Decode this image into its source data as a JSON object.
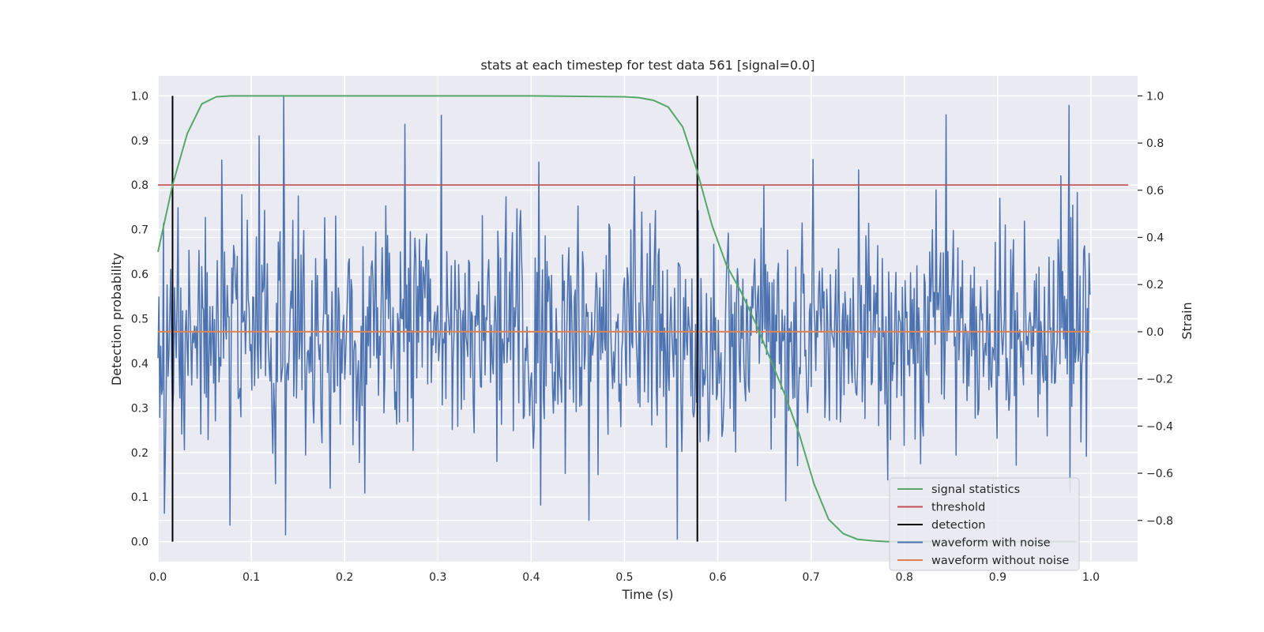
{
  "chart_data": {
    "type": "line",
    "title": "stats at each timestep for test data 561 [signal=0.0]",
    "xlabel": "Time (s)",
    "ylabel": "Detection probability",
    "y2label": "Strain",
    "xlim": [
      0.0,
      1.05
    ],
    "ylim": [
      -0.045,
      1.045
    ],
    "y2lim": [
      -0.975,
      1.085
    ],
    "xticks": [
      "0.0",
      "0.1",
      "0.2",
      "0.3",
      "0.4",
      "0.5",
      "0.6",
      "0.7",
      "0.8",
      "0.9",
      "1.0"
    ],
    "xtick_values": [
      0.0,
      0.1,
      0.2,
      0.3,
      0.4,
      0.5,
      0.6,
      0.7,
      0.8,
      0.9,
      1.0
    ],
    "yticks": [
      "0.0",
      "0.1",
      "0.2",
      "0.3",
      "0.4",
      "0.5",
      "0.6",
      "0.7",
      "0.8",
      "0.9",
      "1.0"
    ],
    "ytick_values": [
      0.0,
      0.1,
      0.2,
      0.3,
      0.4,
      0.5,
      0.6,
      0.7,
      0.8,
      0.9,
      1.0
    ],
    "y2ticks": [
      "−0.8",
      "−0.6",
      "−0.4",
      "−0.2",
      "0.0",
      "0.2",
      "0.4",
      "0.6",
      "0.8",
      "1.0"
    ],
    "y2tick_values": [
      -0.8,
      -0.6,
      -0.4,
      -0.2,
      0.0,
      0.2,
      0.4,
      0.6,
      0.8,
      1.0
    ],
    "grid": true,
    "legend_position": "lower-right",
    "series": [
      {
        "name": "signal statistics",
        "axis": "left",
        "color": "#55a868",
        "x": [
          0.0,
          0.0156,
          0.0313,
          0.0469,
          0.0625,
          0.0781,
          0.1,
          0.2,
          0.3,
          0.4,
          0.5,
          0.5156,
          0.5313,
          0.5469,
          0.5625,
          0.5781,
          0.5938,
          0.6094,
          0.625,
          0.6406,
          0.6563,
          0.6719,
          0.6875,
          0.7031,
          0.7188,
          0.7344,
          0.75,
          0.7656,
          0.7813,
          0.8,
          0.9,
          0.9844
        ],
        "y": [
          0.65,
          0.8,
          0.915,
          0.982,
          0.998,
          1.0,
          1.0,
          1.0,
          1.0,
          1.0,
          0.998,
          0.996,
          0.99,
          0.975,
          0.93,
          0.83,
          0.71,
          0.62,
          0.56,
          0.49,
          0.41,
          0.33,
          0.24,
          0.13,
          0.05,
          0.018,
          0.005,
          0.002,
          0.0,
          0.0,
          0.0,
          0.0
        ]
      },
      {
        "name": "threshold",
        "axis": "left",
        "color": "#c44e52",
        "x": [
          0.0,
          1.04
        ],
        "y": [
          0.8,
          0.8
        ]
      },
      {
        "name": "detection",
        "axis": "left",
        "color": "#000000",
        "x": [
          0.0156,
          0.5781
        ],
        "y_range": [
          0.0,
          1.0
        ]
      },
      {
        "name": "waveform with noise",
        "axis": "right",
        "color": "#4c72b0",
        "x_range": [
          0.0,
          0.999
        ],
        "n_points": 1024,
        "approx_std": 0.25,
        "approx_range": [
          -0.88,
          1.0
        ],
        "notable_points": [
          {
            "x": 0.007,
            "y": -0.77
          },
          {
            "x": 0.077,
            "y": -0.82
          },
          {
            "x": 0.135,
            "y": 1.0
          },
          {
            "x": 0.108,
            "y": 0.83
          },
          {
            "x": 0.265,
            "y": 0.88
          },
          {
            "x": 0.462,
            "y": -0.8
          },
          {
            "x": 0.557,
            "y": -0.88
          },
          {
            "x": 0.845,
            "y": 0.92
          },
          {
            "x": 0.977,
            "y": 0.96
          },
          {
            "x": 0.978,
            "y": -0.68
          }
        ]
      },
      {
        "name": "waveform without noise",
        "axis": "right",
        "color": "#dd8452",
        "x": [
          0.0,
          0.999
        ],
        "y": [
          0.0,
          0.0
        ]
      }
    ]
  }
}
